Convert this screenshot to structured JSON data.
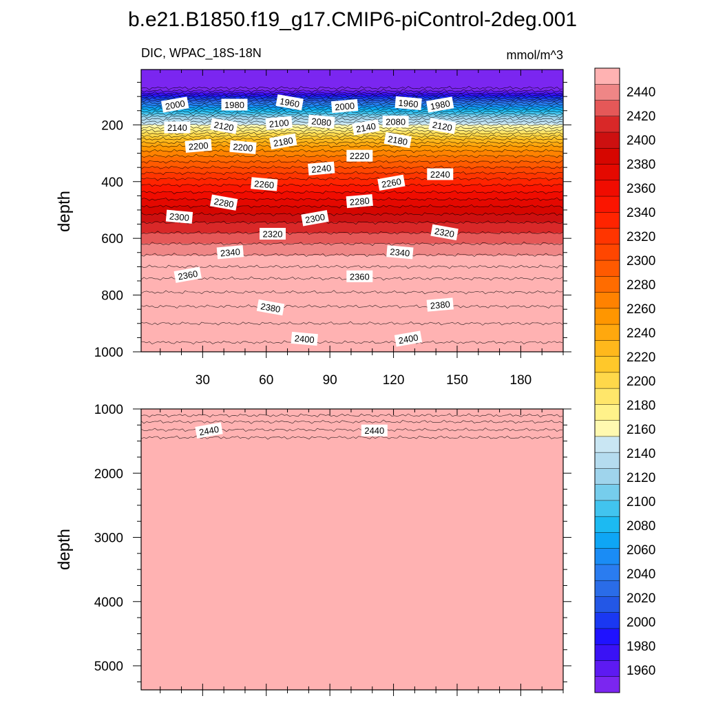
{
  "title": "b.e21.B1850.f19_g17.CMIP6-piControl-2deg.001",
  "colors": {
    "palette": [
      "#7b26f0",
      "#5d1af2",
      "#3a12f5",
      "#1f12ff",
      "#1a38f2",
      "#2357e6",
      "#2a6ce8",
      "#2a7cf0",
      "#1a8cf5",
      "#0ea6f5",
      "#1cbaf2",
      "#41c4ef",
      "#76cdec",
      "#9fd4ec",
      "#b5dcef",
      "#c9e6f3",
      "#fff9b0",
      "#fff28a",
      "#ffe66a",
      "#ffd84a",
      "#ffc82a",
      "#ffb81c",
      "#ffa80e",
      "#ff9600",
      "#ff8200",
      "#ff6c00",
      "#ff5a00",
      "#ff4600",
      "#ff3500",
      "#ff2400",
      "#fb1500",
      "#f00c00",
      "#e40900",
      "#d60600",
      "#cd1010",
      "#d92828",
      "#e55858",
      "#ef8686",
      "#ffb2b2"
    ]
  },
  "chart_data": [
    {
      "type": "contour",
      "panel": "upper",
      "left_label": "DIC, WPAC_18S-18N",
      "right_label": "mmol/m^3",
      "ylabel": "depth",
      "xlim": [
        1,
        200
      ],
      "ylim": [
        1000,
        5
      ],
      "x_ticks": [
        30,
        60,
        90,
        120,
        150,
        180
      ],
      "y_ticks": [
        200,
        400,
        600,
        800,
        1000
      ],
      "profile": {
        "depth": [
          5,
          70,
          85,
          95,
          105,
          115,
          130,
          150,
          175,
          200,
          225,
          250,
          275,
          300,
          330,
          360,
          400,
          450,
          500,
          550,
          600,
          650,
          700,
          750,
          800,
          850,
          900,
          950,
          1000
        ],
        "value": [
          1950,
          1960,
          1975,
          1990,
          2005,
          2020,
          2040,
          2065,
          2095,
          2120,
          2145,
          2170,
          2190,
          2205,
          2220,
          2235,
          2255,
          2275,
          2295,
          2312,
          2325,
          2338,
          2350,
          2362,
          2372,
          2382,
          2390,
          2398,
          2404
        ]
      },
      "contour_labels": [
        {
          "x": 17,
          "depth": 130,
          "text": "2000"
        },
        {
          "x": 45,
          "depth": 130,
          "text": "1980"
        },
        {
          "x": 71,
          "depth": 122,
          "text": "1960"
        },
        {
          "x": 97,
          "depth": 135,
          "text": "2000"
        },
        {
          "x": 127,
          "depth": 125,
          "text": "1960"
        },
        {
          "x": 142,
          "depth": 130,
          "text": "1980"
        },
        {
          "x": 18,
          "depth": 210,
          "text": "2140"
        },
        {
          "x": 40,
          "depth": 205,
          "text": "2120"
        },
        {
          "x": 66,
          "depth": 195,
          "text": "2100"
        },
        {
          "x": 86,
          "depth": 190,
          "text": "2080"
        },
        {
          "x": 107,
          "depth": 210,
          "text": "2140"
        },
        {
          "x": 121,
          "depth": 190,
          "text": "2080"
        },
        {
          "x": 143,
          "depth": 205,
          "text": "2120"
        },
        {
          "x": 28,
          "depth": 275,
          "text": "2200"
        },
        {
          "x": 49,
          "depth": 280,
          "text": "2200"
        },
        {
          "x": 68,
          "depth": 260,
          "text": "2180"
        },
        {
          "x": 104,
          "depth": 310,
          "text": "2220"
        },
        {
          "x": 122,
          "depth": 255,
          "text": "2180"
        },
        {
          "x": 86,
          "depth": 355,
          "text": "2240"
        },
        {
          "x": 59,
          "depth": 410,
          "text": "2260"
        },
        {
          "x": 119,
          "depth": 405,
          "text": "2260"
        },
        {
          "x": 142,
          "depth": 375,
          "text": "2240"
        },
        {
          "x": 40,
          "depth": 475,
          "text": "2280"
        },
        {
          "x": 104,
          "depth": 470,
          "text": "2280"
        },
        {
          "x": 19,
          "depth": 525,
          "text": "2300"
        },
        {
          "x": 83,
          "depth": 530,
          "text": "2300"
        },
        {
          "x": 63,
          "depth": 585,
          "text": "2320"
        },
        {
          "x": 144,
          "depth": 580,
          "text": "2320"
        },
        {
          "x": 43,
          "depth": 650,
          "text": "2340"
        },
        {
          "x": 123,
          "depth": 650,
          "text": "2340"
        },
        {
          "x": 23,
          "depth": 730,
          "text": "2360"
        },
        {
          "x": 104,
          "depth": 735,
          "text": "2360"
        },
        {
          "x": 62,
          "depth": 845,
          "text": "2380"
        },
        {
          "x": 142,
          "depth": 835,
          "text": "2380"
        },
        {
          "x": 78,
          "depth": 955,
          "text": "2400"
        },
        {
          "x": 127,
          "depth": 955,
          "text": "2400"
        }
      ]
    },
    {
      "type": "contour",
      "panel": "lower",
      "ylabel": "depth",
      "xlim": [
        1,
        200
      ],
      "ylim": [
        5375,
        1000
      ],
      "x_ticks": [
        30,
        60,
        90,
        120,
        150,
        180
      ],
      "y_ticks": [
        1000,
        2000,
        3000,
        4000,
        5000
      ],
      "profile": {
        "depth": [
          1000,
          1100,
          1200,
          1300,
          1400,
          1500,
          5375
        ],
        "value": [
          2410,
          2420,
          2430,
          2438,
          2446,
          2455,
          2460
        ]
      },
      "contour_labels": [
        {
          "x": 33,
          "depth": 1340,
          "text": "2440"
        },
        {
          "x": 111,
          "depth": 1340,
          "text": "2440"
        }
      ]
    },
    {
      "type": "colorbar",
      "levels": [
        1950,
        1960,
        1970,
        1980,
        1990,
        2000,
        2010,
        2020,
        2030,
        2040,
        2050,
        2060,
        2070,
        2080,
        2090,
        2100,
        2110,
        2120,
        2130,
        2140,
        2150,
        2160,
        2170,
        2180,
        2190,
        2200,
        2210,
        2220,
        2230,
        2240,
        2250,
        2260,
        2270,
        2280,
        2290,
        2300,
        2310,
        2320,
        2330,
        2340,
        2350,
        2360,
        2370,
        2380,
        2390,
        2400,
        2410,
        2420,
        2430,
        2440,
        2450,
        2460
      ],
      "tick_labels": [
        "1960",
        "1980",
        "2000",
        "2020",
        "2040",
        "2060",
        "2080",
        "2100",
        "2120",
        "2140",
        "2160",
        "2180",
        "2200",
        "2220",
        "2240",
        "2260",
        "2280",
        "2300",
        "2320",
        "2340",
        "2360",
        "2380",
        "2400",
        "2420",
        "2440"
      ]
    }
  ]
}
